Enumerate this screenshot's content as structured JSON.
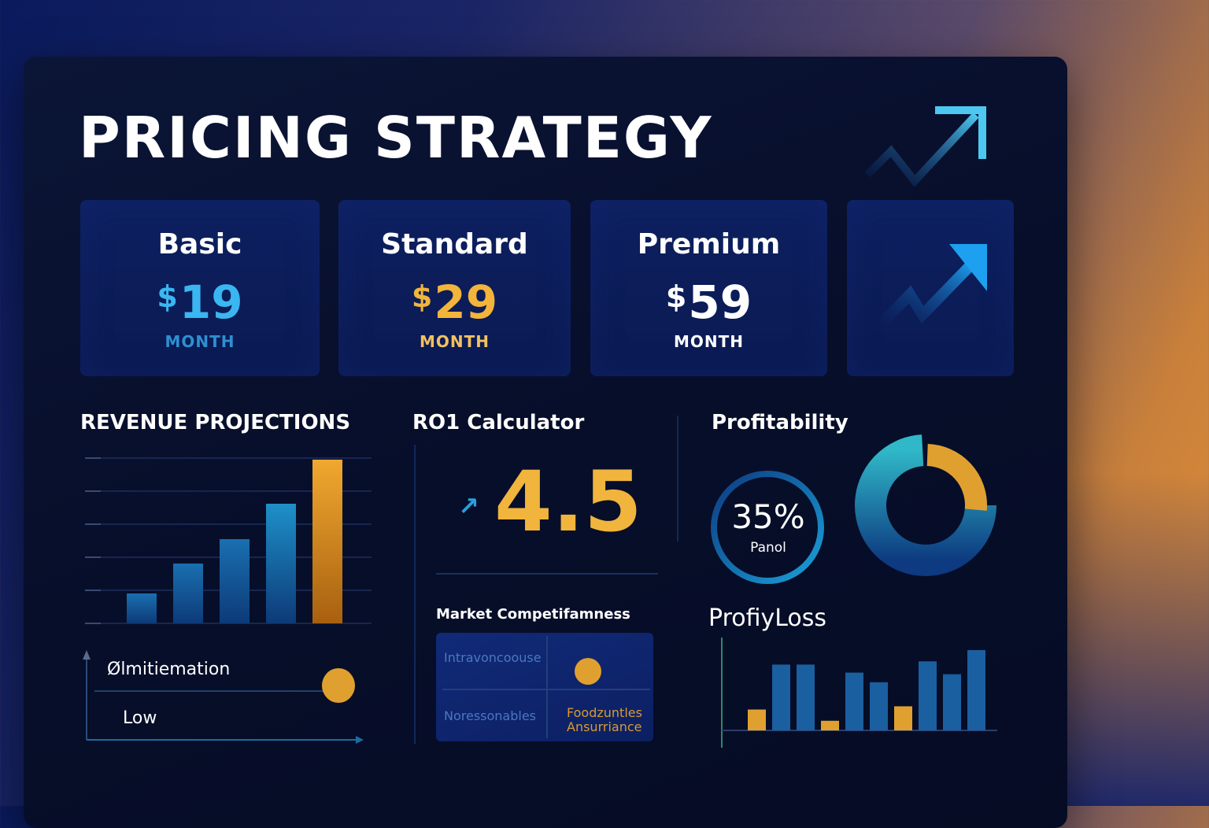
{
  "header": {
    "title": "PRICING STRATEGY"
  },
  "plans": [
    {
      "name": "Basic",
      "currency": "$",
      "price": "19",
      "period": "MONTH",
      "price_color": "#3ab6f0",
      "period_color": "#2e8fd0"
    },
    {
      "name": "Standard",
      "currency": "$",
      "price": "29",
      "period": "MONTH",
      "price_color": "#f2b43a",
      "period_color": "#f2c060"
    },
    {
      "name": "Premium",
      "currency": "$",
      "price": "59",
      "period": "MONTH",
      "price_color": "#ffffff",
      "period_color": "#ffffff"
    }
  ],
  "revenue": {
    "label": "REVENUE PROJECTIONS",
    "chart_data": {
      "type": "bar",
      "values": [
        38,
        76,
        107,
        152,
        208
      ],
      "ylim": [
        0,
        210
      ],
      "colors": [
        "#1a6fb0",
        "#1a6fb0",
        "#1a6fb0",
        "#1e90c8",
        "#f0a830"
      ]
    },
    "quadrant": {
      "label_top": "Ølmitiemation",
      "label_bottom": "Low"
    }
  },
  "roi": {
    "label": "RO1 Calculator",
    "value": "4.5",
    "arrow_glyph": "↗"
  },
  "market": {
    "label": "Market Competifamness",
    "cells": {
      "top_left": "Intravoncoouse",
      "bottom_left": "Noressonables",
      "bottom_right_line1": "Foodzuntles",
      "bottom_right_line2": "Ansurriance"
    }
  },
  "profitability": {
    "label": "Profitability",
    "ring_value": "35%",
    "ring_sub": "Panol",
    "ring_fraction": 0.35
  },
  "profit_loss": {
    "label": "ProfiyLoss",
    "chart_data": {
      "type": "bar",
      "values": [
        26,
        82,
        82,
        12,
        72,
        60,
        30,
        86,
        70,
        100
      ],
      "ylim": [
        0,
        100
      ],
      "colors": [
        "#e0a030",
        "#1a5fa0",
        "#1a5fa0",
        "#e0a030",
        "#1a5fa0",
        "#1a5fa0",
        "#e0a030",
        "#1a5fa0",
        "#1a5fa0",
        "#1a5fa0"
      ]
    }
  }
}
